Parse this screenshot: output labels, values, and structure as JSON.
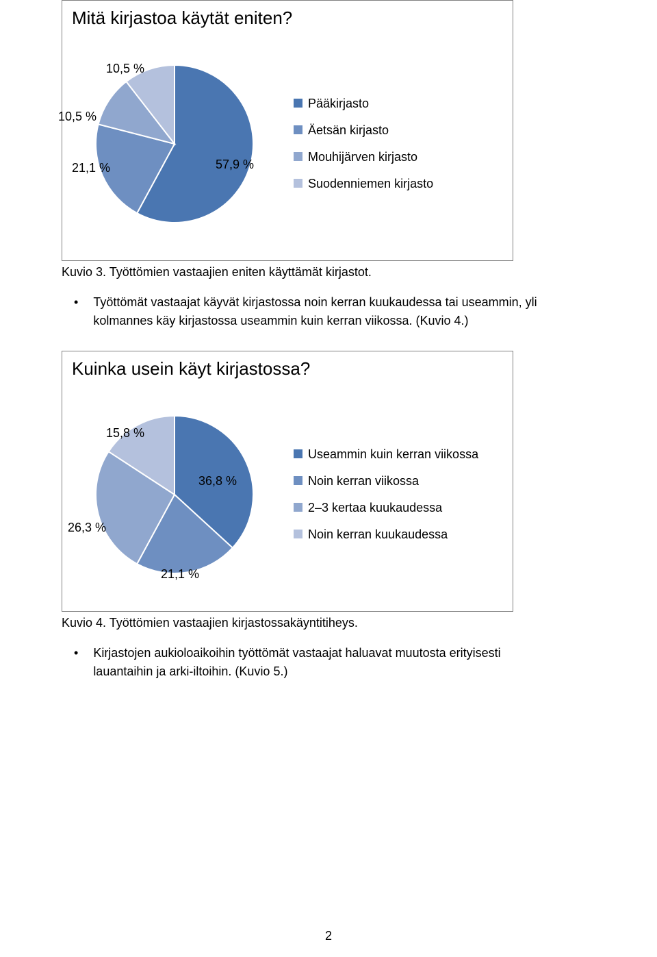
{
  "chart1": {
    "type": "pie",
    "title": "Mitä kirjastoa käytät eniten?",
    "slices": [
      {
        "label": "Pääkirjasto",
        "value": 57.9,
        "pct_label": "57,9 %",
        "color": "#4a76b1"
      },
      {
        "label": "Äetsän kirjasto",
        "value": 21.1,
        "pct_label": "21,1 %",
        "color": "#6e8fc1"
      },
      {
        "label": "Mouhijärven kirjasto",
        "value": 10.5,
        "pct_label": "10,5 %",
        "color": "#90a7ce"
      },
      {
        "label": "Suodenniemen kirjasto",
        "value": 10.5,
        "pct_label": "10,5 %",
        "color": "#b4c1dd"
      }
    ],
    "legend_marker": "■",
    "title_fontsize": 26,
    "label_fontsize": 18,
    "background_color": "#ffffff",
    "border_color": "#808080",
    "pie_radius": 115,
    "stroke_color": "#ffffff",
    "stroke_width": 2
  },
  "caption1": "Kuvio 3. Työttömien vastaajien eniten käyttämät kirjastot.",
  "bullet1": "Työttömät vastaajat käyvät kirjastossa noin kerran kuukaudessa tai useammin, yli kolmannes käy kirjastossa useammin kuin kerran viikossa. (Kuvio 4.)",
  "chart2": {
    "type": "pie",
    "title": "Kuinka usein käyt kirjastossa?",
    "slices": [
      {
        "label": "Useammin kuin kerran viikossa",
        "value": 36.8,
        "pct_label": "36,8 %",
        "color": "#4a76b1"
      },
      {
        "label": "Noin kerran viikossa",
        "value": 21.1,
        "pct_label": "21,1 %",
        "color": "#6e8fc1"
      },
      {
        "label": "2–3 kertaa kuukaudessa",
        "value": 26.3,
        "pct_label": "26,3 %",
        "color": "#90a7ce"
      },
      {
        "label": "Noin kerran kuukaudessa",
        "value": 15.8,
        "pct_label": "15,8 %",
        "color": "#b4c1dd"
      }
    ],
    "legend_marker": "■",
    "title_fontsize": 26,
    "label_fontsize": 18,
    "background_color": "#ffffff",
    "border_color": "#808080",
    "pie_radius": 115,
    "stroke_color": "#ffffff",
    "stroke_width": 2
  },
  "caption2": "Kuvio 4. Työttömien vastaajien kirjastossakäyntitiheys.",
  "bullet2": "Kirjastojen aukioloaikoihin työttömät vastaajat haluavat muutosta erityisesti lauantaihin ja arki-iltoihin. (Kuvio 5.)",
  "page_number": "2"
}
